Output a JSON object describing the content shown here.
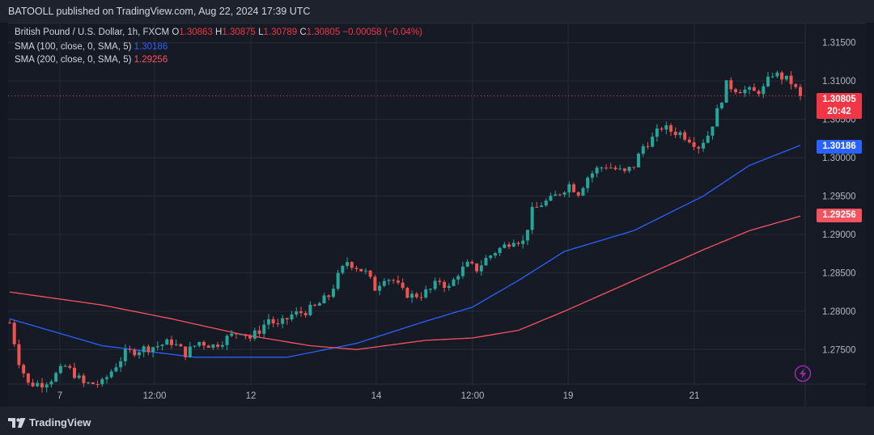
{
  "header": {
    "publisher_text": "BATOOLL published on TradingView.com, Aug 22, 2024 17:39 UTC"
  },
  "legend": {
    "symbol": "British Pound / U.S. Dollar, 1h, FXCM",
    "open_label": "O",
    "open": "1.30863",
    "high_label": "H",
    "high": "1.30875",
    "low_label": "L",
    "low": "1.30789",
    "close_label": "C",
    "close": "1.30805",
    "change": "−0.00058 (−0.04%)",
    "sma100_label": "SMA (100, close, 0, SMA, 5)",
    "sma100_value": "1.30186",
    "sma200_label": "SMA (200, close, 0, SMA, 5)",
    "sma200_value": "1.29256"
  },
  "price_tags": {
    "last_price": "1.30805",
    "countdown": "20:42",
    "sma100": "1.30186",
    "sma200": "1.29256"
  },
  "footer": {
    "logo_text": "TradingView"
  },
  "icons": {
    "bolt": "lightning-bolt-icon",
    "logo": "tradingview-logo-icon"
  },
  "colors": {
    "up": "#26a69a",
    "down": "#ef5350",
    "sma100": "#2962ff",
    "sma200": "#f7525f",
    "background": "#161a25",
    "grid": "#262a35",
    "last_price": "#f23645"
  },
  "chart_data": {
    "type": "candlestick",
    "title": "British Pound / U.S. Dollar, 1h, FXCM",
    "y_ticks": [
      "1.27500",
      "1.28000",
      "1.28500",
      "1.29000",
      "1.29500",
      "1.30000",
      "1.30500",
      "1.31000",
      "1.31500"
    ],
    "x_ticks": [
      "7",
      "12:00",
      "12",
      "14",
      "12:00",
      "19",
      "21"
    ],
    "ylim": [
      1.2705,
      1.3175
    ],
    "grid": true,
    "last_price": 1.30805,
    "price_path": [
      [
        0,
        1.2785
      ],
      [
        2,
        1.2735
      ],
      [
        4,
        1.2705
      ],
      [
        7,
        1.2706
      ],
      [
        9,
        1.2712
      ],
      [
        12,
        1.2728
      ],
      [
        14,
        1.2718
      ],
      [
        16,
        1.2705
      ],
      [
        20,
        1.2706
      ],
      [
        23,
        1.273
      ],
      [
        25,
        1.2745
      ],
      [
        28,
        1.275
      ],
      [
        32,
        1.2755
      ],
      [
        35,
        1.276
      ],
      [
        38,
        1.2745
      ],
      [
        41,
        1.276
      ],
      [
        44,
        1.2755
      ],
      [
        47,
        1.2765
      ],
      [
        50,
        1.2775
      ],
      [
        52,
        1.2765
      ],
      [
        54,
        1.2775
      ],
      [
        56,
        1.279
      ],
      [
        58,
        1.278
      ],
      [
        61,
        1.2795
      ],
      [
        64,
        1.28
      ],
      [
        66,
        1.2805
      ],
      [
        69,
        1.282
      ],
      [
        71,
        1.2845
      ],
      [
        73,
        1.2865
      ],
      [
        75,
        1.2858
      ],
      [
        77,
        1.285
      ],
      [
        79,
        1.283
      ],
      [
        81,
        1.2845
      ],
      [
        83,
        1.284
      ],
      [
        85,
        1.2825
      ],
      [
        87,
        1.282
      ],
      [
        89,
        1.2822
      ],
      [
        91,
        1.2828
      ],
      [
        93,
        1.284
      ],
      [
        95,
        1.283
      ],
      [
        97,
        1.285
      ],
      [
        99,
        1.286
      ],
      [
        101,
        1.2855
      ],
      [
        103,
        1.2868
      ],
      [
        105,
        1.2878
      ],
      [
        107,
        1.2885
      ],
      [
        109,
        1.2895
      ],
      [
        111,
        1.289
      ],
      [
        113,
        1.293
      ],
      [
        115,
        1.294
      ],
      [
        117,
        1.2945
      ],
      [
        119,
        1.2955
      ],
      [
        121,
        1.2965
      ],
      [
        123,
        1.2955
      ],
      [
        125,
        1.2975
      ],
      [
        127,
        1.2985
      ],
      [
        129,
        1.299
      ],
      [
        131,
        1.2985
      ],
      [
        133,
        1.298
      ],
      [
        135,
        1.299
      ],
      [
        137,
        1.3015
      ],
      [
        139,
        1.3025
      ],
      [
        141,
        1.304
      ],
      [
        143,
        1.3035
      ],
      [
        145,
        1.3032
      ],
      [
        147,
        1.3025
      ],
      [
        149,
        1.3015
      ],
      [
        151,
        1.303
      ],
      [
        153,
        1.306
      ],
      [
        155,
        1.3095
      ],
      [
        157,
        1.309
      ],
      [
        159,
        1.3088
      ],
      [
        161,
        1.3085
      ],
      [
        163,
        1.309
      ],
      [
        165,
        1.311
      ],
      [
        167,
        1.3105
      ],
      [
        169,
        1.3098
      ],
      [
        171,
        1.308
      ]
    ],
    "series": [
      {
        "name": "SMA (100, close, 0, SMA, 5)",
        "color": "#2962ff",
        "value": 1.30186,
        "path": [
          [
            0,
            1.279
          ],
          [
            20,
            1.2755
          ],
          [
            40,
            1.274
          ],
          [
            60,
            1.274
          ],
          [
            75,
            1.2758
          ],
          [
            90,
            1.2787
          ],
          [
            100,
            1.2805
          ],
          [
            110,
            1.284
          ],
          [
            120,
            1.2878
          ],
          [
            135,
            1.2905
          ],
          [
            150,
            1.295
          ],
          [
            160,
            1.299
          ],
          [
            172,
            1.30186
          ]
        ]
      },
      {
        "name": "SMA (200, close, 0, SMA, 5)",
        "color": "#f7525f",
        "value": 1.29256,
        "path": [
          [
            0,
            1.2825
          ],
          [
            20,
            1.2808
          ],
          [
            35,
            1.279
          ],
          [
            50,
            1.277
          ],
          [
            65,
            1.2755
          ],
          [
            75,
            1.275
          ],
          [
            90,
            1.2762
          ],
          [
            100,
            1.2765
          ],
          [
            110,
            1.2775
          ],
          [
            120,
            1.28
          ],
          [
            135,
            1.284
          ],
          [
            150,
            1.288
          ],
          [
            160,
            1.2905
          ],
          [
            172,
            1.29256
          ]
        ]
      }
    ]
  }
}
